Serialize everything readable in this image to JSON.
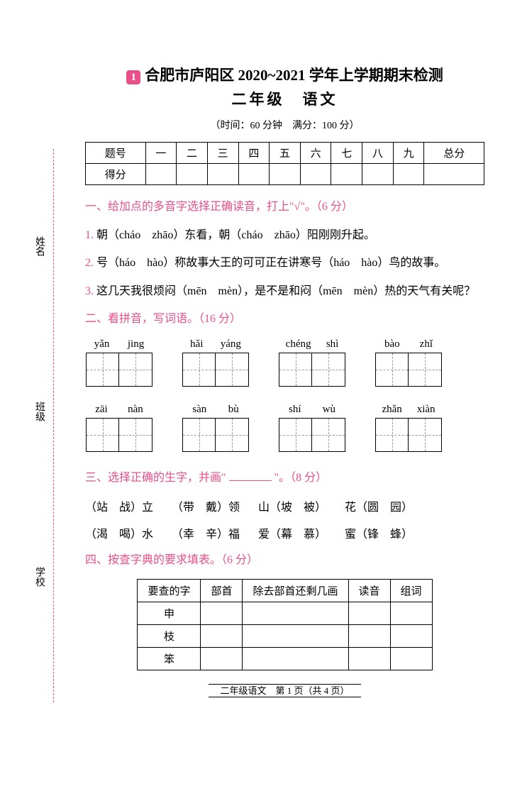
{
  "badge": "1",
  "title": "合肥市庐阳区 2020~2021 学年上学期期末检测",
  "subtitle": "二年级　语文",
  "timeinfo": "（时间：60 分钟　满分：100 分）",
  "score_table": {
    "headers": [
      "题号",
      "一",
      "二",
      "三",
      "四",
      "五",
      "六",
      "七",
      "八",
      "九",
      "总分"
    ],
    "row2_label": "得分"
  },
  "sec1": {
    "title": "一、给加点的多音字选择正确读音，打上\"√\"。（6 分）",
    "q1_num": "1.",
    "q1_text": " 朝（cháo　zhāo）东看，朝（cháo　zhāo）阳刚刚升起。",
    "q2_num": "2.",
    "q2_text": " 号（háo　hào）称故事大王的可可正在讲寒号（háo　hào）鸟的故事。",
    "q3_num": "3.",
    "q3_text": " 这几天我很烦闷（mēn　mèn），是不是和闷（mēn　mèn）热的天气有关呢？"
  },
  "sec2": {
    "title": "二、看拼音，写词语。（16 分）",
    "row1": [
      {
        "a": "yǎn",
        "b": "jing"
      },
      {
        "a": "hǎi",
        "b": "yáng"
      },
      {
        "a": "chéng",
        "b": "shì"
      },
      {
        "a": "bào",
        "b": "zhǐ"
      }
    ],
    "row2": [
      {
        "a": "zāi",
        "b": "nàn"
      },
      {
        "a": "sàn",
        "b": "bù"
      },
      {
        "a": "shí",
        "b": "wù"
      },
      {
        "a": "zhǎn",
        "b": "xiàn"
      }
    ]
  },
  "sec3": {
    "title_a": "三、选择正确的生字，并画\"",
    "title_b": "\"。（8 分）",
    "row1": [
      "（站　战）立",
      "（带　戴）领",
      "山（坡　被）",
      "花（圆　园）"
    ],
    "row2": [
      "（渴　喝）水",
      "（幸　辛）福",
      "爱（幕　慕）",
      "蜜（锋　蜂）"
    ]
  },
  "sec4": {
    "title": "四、按查字典的要求填表。（6 分）",
    "headers": [
      "要查的字",
      "部首",
      "除去部首还剩几画",
      "读音",
      "组词"
    ],
    "rows": [
      "申",
      "枝",
      "笨"
    ]
  },
  "footer": "二年级语文　第 1 页（共 4 页）",
  "side": {
    "xingming": "姓名",
    "banji": "班级",
    "xuexiao": "学校"
  }
}
